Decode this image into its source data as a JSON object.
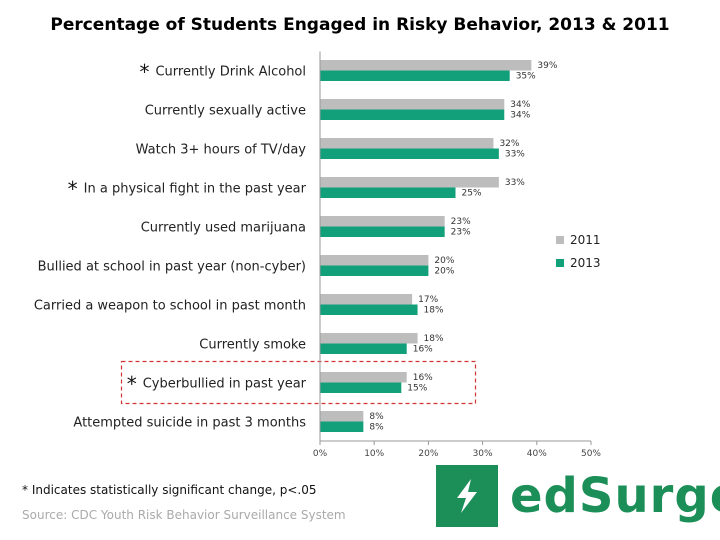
{
  "title": "Percentage of Students Engaged in Risky Behavior, 2013 & 2011",
  "footnote": "* Indicates statistically significant change, p<.05",
  "source": "Source: CDC Youth Risk Behavior Surveillance System",
  "logo": {
    "text": "edSurge",
    "color": "#1b8f57",
    "icon": "lightning-bolt-icon"
  },
  "colors": {
    "series_2011": "#bdbdbd",
    "series_2013": "#12a07a",
    "highlight_box": "#d33333",
    "axis": "#999999"
  },
  "chart_data": {
    "type": "bar",
    "orientation": "horizontal",
    "categories": [
      "Currently Drink Alcohol",
      "Currently sexually active",
      "Watch 3+ hours of TV/day",
      "In a physical fight in the past year",
      "Currently used marijuana",
      "Bullied at school in past year (non-cyber)",
      "Carried a weapon to school in past month",
      "Currently smoke",
      "Cyberbullied in past year",
      "Attempted suicide in past 3 months"
    ],
    "significant": [
      true,
      false,
      false,
      true,
      false,
      false,
      false,
      false,
      true,
      false
    ],
    "highlighted": [
      false,
      false,
      false,
      false,
      false,
      false,
      false,
      false,
      true,
      false
    ],
    "series": [
      {
        "name": "2011",
        "values": [
          39,
          34,
          32,
          33,
          23,
          20,
          17,
          18,
          16,
          8
        ]
      },
      {
        "name": "2013",
        "values": [
          35,
          34,
          33,
          25,
          23,
          20,
          18,
          16,
          15,
          8
        ]
      }
    ],
    "value_suffix": "%",
    "xlim": [
      0,
      50
    ],
    "xticks": [
      "0%",
      "10%",
      "20%",
      "30%",
      "40%",
      "50%"
    ],
    "legend_position": "right",
    "grid": false
  }
}
